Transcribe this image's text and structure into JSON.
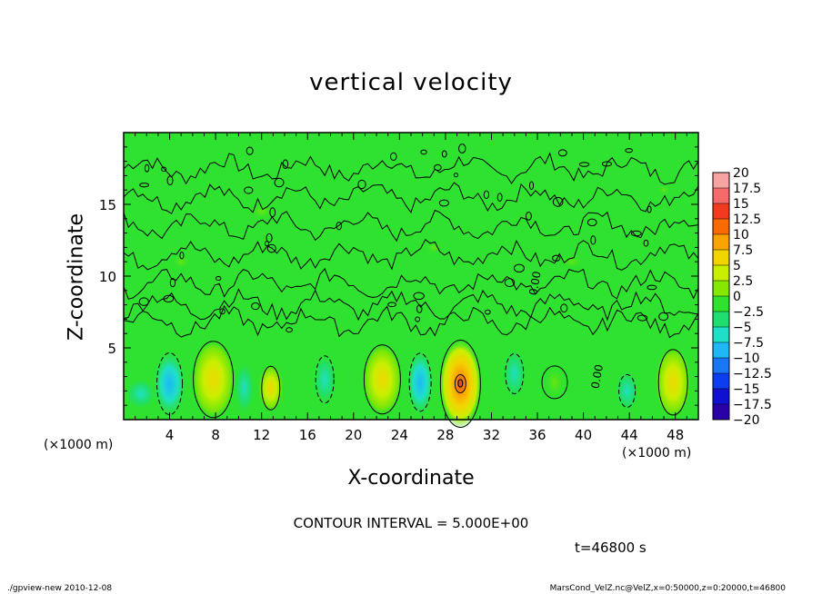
{
  "chart_data": {
    "type": "heatmap",
    "title": "vertical velocity",
    "xlabel": "X-coordinate",
    "ylabel": "Z-coordinate",
    "x_unit": "(×1000 m)",
    "y_unit": "(×1000 m)",
    "xlim": [
      0,
      50
    ],
    "ylim": [
      0,
      20
    ],
    "x_ticks": [
      4,
      8,
      12,
      16,
      20,
      24,
      28,
      32,
      36,
      40,
      44,
      48
    ],
    "y_ticks": [
      5,
      10,
      15
    ],
    "colorbar": {
      "levels": [
        "20",
        "17.5",
        "15",
        "12.5",
        "10",
        "7.5",
        "5",
        "2.5",
        "0",
        "−2.5",
        "−5",
        "−7.5",
        "−10",
        "−12.5",
        "−15",
        "−17.5",
        "−20"
      ],
      "colors": [
        "#f7a3a3",
        "#f66a6a",
        "#f23a1e",
        "#f96b00",
        "#fba400",
        "#f2d500",
        "#c8ef00",
        "#86e800",
        "#2fe22f",
        "#1fde6f",
        "#1ee0c8",
        "#1db8f5",
        "#1a76f5",
        "#0c3ef0",
        "#1010d0",
        "#2a00a8",
        "#6a10b8"
      ]
    },
    "contour_labels": [
      "0",
      "0.00",
      "0.00"
    ],
    "contour_interval": "CONTOUR INTERVAL = 5.000E+00",
    "time": "t=46800 s"
  },
  "footer": {
    "left": "./gpview-new  2010-12-08",
    "right": "MarsCond_VelZ.nc@VelZ,x=0:50000,z=0:20000,t=46800"
  }
}
